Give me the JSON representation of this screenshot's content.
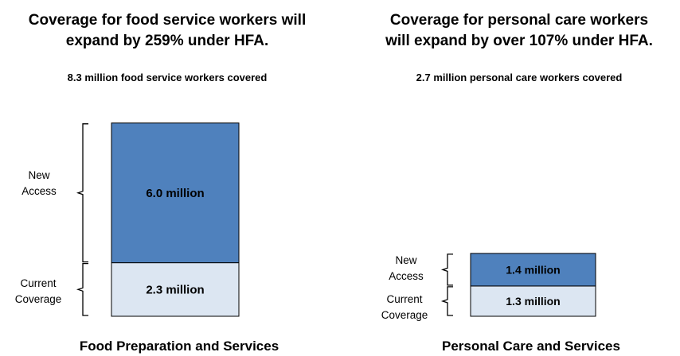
{
  "chart_data": [
    {
      "type": "bar",
      "stacked": true,
      "title": "Coverage for food service workers will\nexpand by 259% under HFA.",
      "subtitle": "8.3 million food service workers covered",
      "categories": [
        "Food Preparation and Services"
      ],
      "unit": "million",
      "series": [
        {
          "name": "Current Coverage",
          "values": [
            2.3
          ],
          "label": "2.3 million",
          "color": "#dce6f2"
        },
        {
          "name": "New Access",
          "values": [
            6.0
          ],
          "label": "6.0 million",
          "color": "#4f81bd"
        }
      ],
      "grid": false
    },
    {
      "type": "bar",
      "stacked": true,
      "title": "Coverage for personal care workers\nwill expand by over 107% under HFA.",
      "subtitle": "2.7 million personal care workers covered",
      "categories": [
        "Personal Care and Services"
      ],
      "unit": "million",
      "series": [
        {
          "name": "Current Coverage",
          "values": [
            1.3
          ],
          "label": "1.3 million",
          "color": "#dce6f2"
        },
        {
          "name": "New Access",
          "values": [
            1.4
          ],
          "label": "1.4 million",
          "color": "#4f81bd"
        }
      ],
      "grid": false
    }
  ],
  "brace_labels": {
    "new_access": "New\nAccess",
    "current_coverage": "Current\nCoverage"
  }
}
